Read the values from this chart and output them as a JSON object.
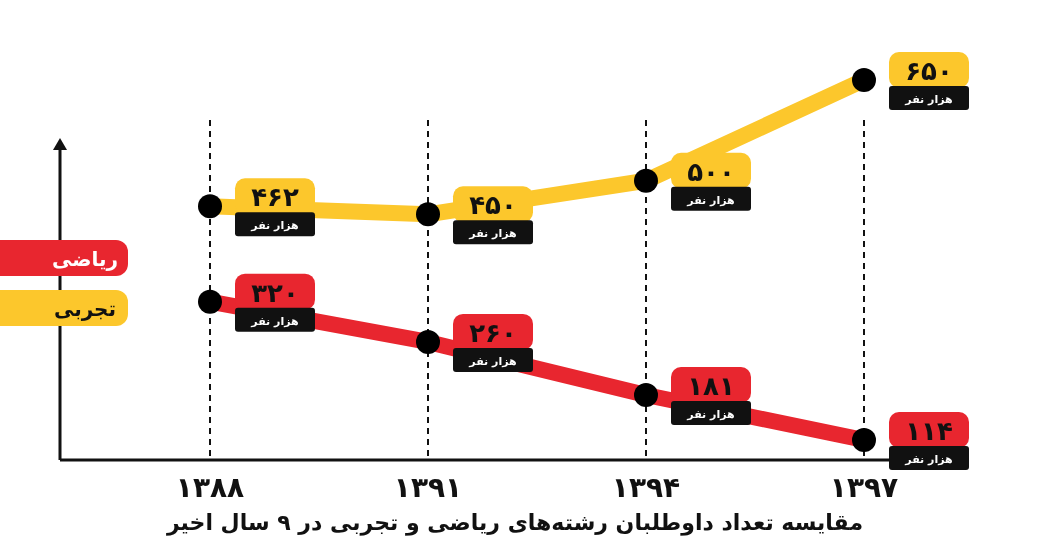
{
  "chart_data": {
    "type": "line",
    "title": "مقایسه تعداد داوطلبان رشته‌های ریاضی و تجربی در ۹ سال اخیر",
    "categories": [
      "۱۳۸۸",
      "۱۳۹۱",
      "۱۳۹۴",
      "۱۳۹۷"
    ],
    "series": [
      {
        "name": "ریاضی",
        "color": "#e8262f",
        "values": [
          320,
          260,
          181,
          114
        ],
        "value_labels": [
          "۳۲۰\nهزار نفر",
          "۲۶۰\nهزار نفر",
          "۱۸۱\nهزار نفر",
          "۱۱۴\nهزار نفر"
        ]
      },
      {
        "name": "تجربی",
        "color": "#fcc72c",
        "values": [
          462,
          450,
          500,
          650
        ],
        "value_labels": [
          "۴۶۲\nهزار نفر",
          "۴۵۰\nهزار نفر",
          "۵۰۰\nهزار نفر",
          "۶۵۰\nهزار نفر"
        ]
      }
    ],
    "tick_labels": "x",
    "grid": "x",
    "legend": "left",
    "marker": "circle",
    "line_style": "solid"
  }
}
